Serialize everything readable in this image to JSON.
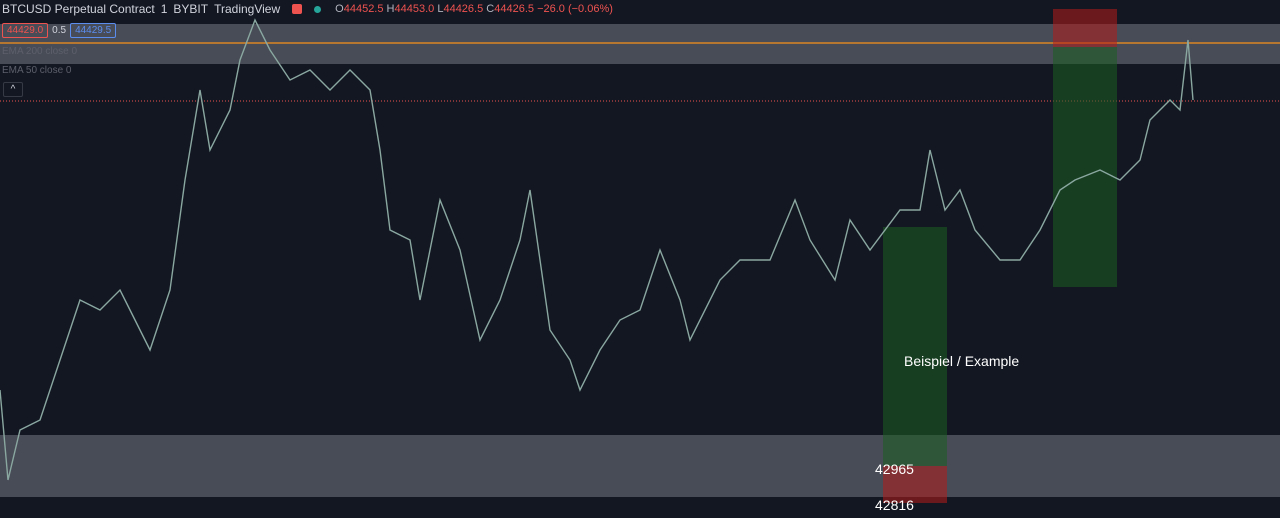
{
  "header": {
    "symbol": "BTCUSD Perpetual Contract",
    "interval": "1",
    "exchange": "BYBIT",
    "source": "TradingView",
    "ohlc": {
      "o_label": "O",
      "o": "44452.5",
      "h_label": "H",
      "h": "44453.0",
      "l_label": "L",
      "l": "44426.5",
      "c_label": "C",
      "c": "44426.5",
      "change": "−26.0 (−0.06%)"
    }
  },
  "trade_panel": {
    "sell": "44429.0",
    "spread": "0.5",
    "buy": "44429.5"
  },
  "indicators": [
    "EMA 200 close 0",
    "EMA 50 close 0"
  ],
  "annotations": {
    "example": "Beispiel / Example",
    "level_1": "42965",
    "level_2": "42816"
  }
}
